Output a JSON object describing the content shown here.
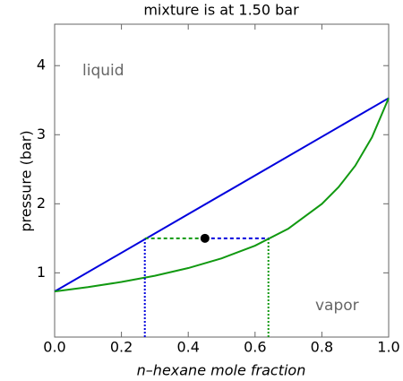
{
  "chart_data": {
    "type": "line",
    "title": "mixture is at 1.50 bar",
    "x_label": "n–hexane mole fraction",
    "y_label": "pressure (bar)",
    "xlim": [
      0,
      1
    ],
    "ylim": [
      0.07,
      4.6
    ],
    "xticks": [
      {
        "value": 0,
        "label": "0.0"
      },
      0.2,
      0.4,
      0.6,
      0.8,
      {
        "value": 1,
        "label": "1.0"
      }
    ],
    "yticks": [
      1,
      2,
      3,
      4
    ],
    "series": [
      {
        "color": "#0000dd",
        "style": "solid",
        "x": [
          0,
          1
        ],
        "values": [
          0.73,
          3.53
        ]
      },
      {
        "color": "#119911",
        "style": "solid",
        "x": [
          0,
          0.1,
          0.2,
          0.3,
          0.4,
          0.5,
          0.6,
          0.7,
          0.8,
          0.85,
          0.9,
          0.95,
          1
        ],
        "values": [
          0.73,
          0.793,
          0.868,
          0.958,
          1.069,
          1.21,
          1.393,
          1.641,
          1.998,
          2.241,
          2.551,
          2.962,
          3.53
        ]
      },
      {
        "color": "#119911",
        "style": "dashed",
        "x": [
          0.27,
          0.45
        ],
        "values": [
          1.5,
          1.5
        ]
      },
      {
        "color": "#0000dd",
        "style": "dashed",
        "x": [
          0.45,
          0.64
        ],
        "values": [
          1.5,
          1.5
        ]
      },
      {
        "color": "#0000dd",
        "style": "dotted",
        "x": [
          0.27,
          0.27
        ],
        "values": [
          0.07,
          1.5
        ]
      },
      {
        "color": "#119911",
        "style": "dotted",
        "x": [
          0.64,
          0.64
        ],
        "values": [
          0.07,
          1.5
        ]
      }
    ],
    "point": {
      "x": 0.45,
      "y": 1.5,
      "color": "#000000"
    },
    "annotations": [
      "liquid",
      "vapor"
    ]
  }
}
